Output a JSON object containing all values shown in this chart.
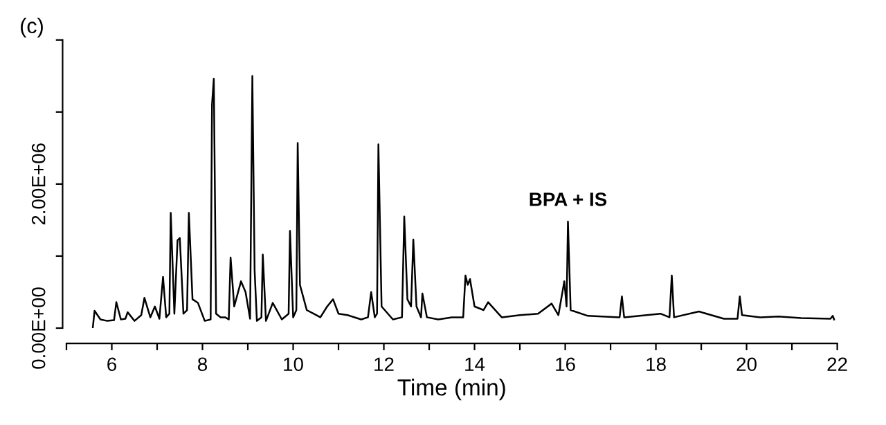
{
  "chart_data": {
    "type": "line",
    "title": "(c)",
    "xlabel": "Time (min)",
    "x": [
      5.58,
      5.62,
      5.75,
      5.9,
      6.05,
      6.1,
      6.2,
      6.3,
      6.35,
      6.5,
      6.65,
      6.72,
      6.85,
      6.95,
      7.05,
      7.13,
      7.2,
      7.27,
      7.3,
      7.38,
      7.45,
      7.5,
      7.58,
      7.66,
      7.7,
      7.78,
      7.9,
      8.05,
      8.18,
      8.21,
      8.25,
      8.3,
      8.4,
      8.5,
      8.58,
      8.62,
      8.7,
      8.85,
      8.95,
      9.05,
      9.1,
      9.15,
      9.2,
      9.3,
      9.33,
      9.4,
      9.55,
      9.75,
      9.9,
      9.93,
      10.0,
      10.07,
      10.1,
      10.15,
      10.3,
      10.45,
      10.6,
      10.75,
      10.88,
      11.0,
      11.2,
      11.5,
      11.65,
      11.72,
      11.8,
      11.85,
      11.88,
      11.95,
      12.2,
      12.4,
      12.45,
      12.52,
      12.6,
      12.65,
      12.72,
      12.82,
      12.85,
      12.95,
      13.2,
      13.5,
      13.75,
      13.8,
      13.85,
      13.9,
      14.0,
      14.2,
      14.3,
      14.6,
      15.0,
      15.4,
      15.7,
      15.85,
      15.98,
      16.03,
      16.06,
      16.12,
      16.5,
      17.2,
      17.25,
      17.3,
      18.1,
      18.3,
      18.35,
      18.4,
      18.95,
      19.5,
      19.8,
      19.85,
      19.9,
      20.3,
      20.7,
      21.2,
      21.85,
      21.9,
      21.93
    ],
    "values": [
      0,
      240000,
      120000,
      100000,
      110000,
      360000,
      120000,
      130000,
      220000,
      100000,
      180000,
      420000,
      150000,
      300000,
      130000,
      710000,
      150000,
      200000,
      1600000,
      200000,
      1220000,
      1250000,
      200000,
      250000,
      1600000,
      400000,
      350000,
      100000,
      120000,
      3100000,
      3460000,
      200000,
      150000,
      150000,
      120000,
      980000,
      300000,
      650000,
      500000,
      130000,
      3500000,
      800000,
      100000,
      150000,
      1020000,
      100000,
      350000,
      120000,
      200000,
      1350000,
      150000,
      250000,
      2570000,
      600000,
      250000,
      200000,
      150000,
      300000,
      400000,
      200000,
      180000,
      120000,
      150000,
      500000,
      150000,
      200000,
      2550000,
      300000,
      120000,
      150000,
      1550000,
      400000,
      300000,
      1230000,
      300000,
      150000,
      480000,
      150000,
      120000,
      150000,
      150000,
      730000,
      600000,
      680000,
      300000,
      250000,
      360000,
      150000,
      180000,
      200000,
      340000,
      180000,
      650000,
      300000,
      1480000,
      250000,
      170000,
      150000,
      440000,
      150000,
      200000,
      150000,
      730000,
      150000,
      230000,
      130000,
      130000,
      440000,
      180000,
      150000,
      160000,
      140000,
      130000,
      170000,
      120000
    ],
    "color": "#000000",
    "xlim": [
      5,
      22
    ],
    "xticks": [
      {
        "value": 5,
        "label": null
      },
      6,
      {
        "value": 7,
        "label": null
      },
      8,
      {
        "value": 9,
        "label": null
      },
      10,
      {
        "value": 11,
        "label": null
      },
      12,
      {
        "value": 13,
        "label": null
      },
      14,
      {
        "value": 15,
        "label": null
      },
      16,
      {
        "value": 17,
        "label": null
      },
      18,
      {
        "value": 19,
        "label": null
      },
      20,
      {
        "value": 21,
        "label": null
      },
      22
    ],
    "ylim": [
      0,
      4000000
    ],
    "yticks": [
      {
        "value": 0,
        "label": "0.00E+00"
      },
      {
        "value": 1000000,
        "label": null
      },
      {
        "value": 2000000,
        "label": "2.00E+06"
      },
      {
        "value": 3000000,
        "label": null
      },
      {
        "value": 4000000,
        "label": null
      }
    ],
    "annotations": [
      {
        "text": "BPA + IS",
        "x": 16.06,
        "y": 1480000
      }
    ],
    "grid": false,
    "legend": false,
    "marker": "none",
    "line_style": "solid"
  }
}
